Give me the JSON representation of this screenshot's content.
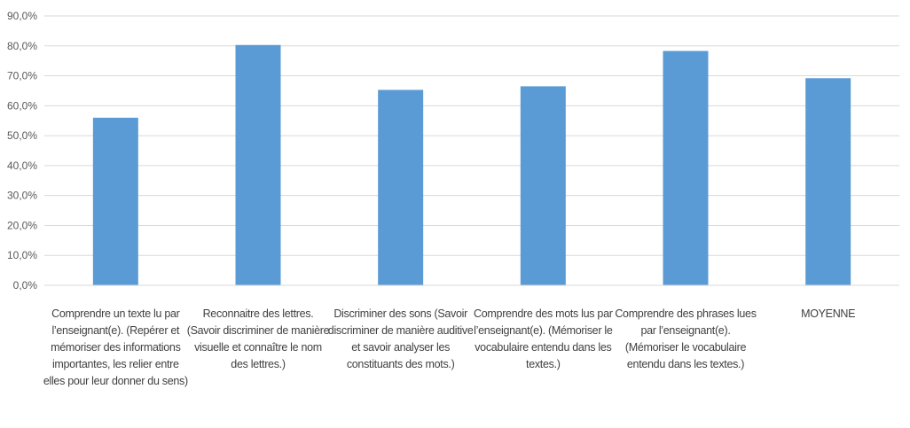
{
  "chart_data": {
    "type": "bar",
    "title": "",
    "xlabel": "",
    "ylabel": "",
    "ylim": [
      0,
      90
    ],
    "ytick_step": 10,
    "ytick_labels": [
      "0,0%",
      "10,0%",
      "20,0%",
      "30,0%",
      "40,0%",
      "50,0%",
      "60,0%",
      "70,0%",
      "80,0%",
      "90,0%"
    ],
    "categories": [
      "Comprendre un texte lu par l’enseignant(e). (Repérer et mémoriser des informations importantes, les relier entre elles pour leur donner du sens)",
      "Reconnaitre des lettres. (Savoir discriminer de manière visuelle et connaître le nom des lettres.)",
      "Discriminer des sons (Savoir discriminer de manière auditive et savoir analyser les constituants des mots.)",
      "Comprendre des mots lus par l’enseignant(e). (Mémoriser le vocabulaire entendu dans les textes.)",
      "Comprendre des phrases lues par l’enseignant(e). (Mémoriser le vocabulaire entendu dans les textes.)",
      "MOYENNE"
    ],
    "values": [
      56.0,
      80.3,
      65.3,
      66.5,
      78.3,
      69.2
    ],
    "bar_color": "#5b9bd5",
    "grid": true,
    "legend": "none"
  }
}
